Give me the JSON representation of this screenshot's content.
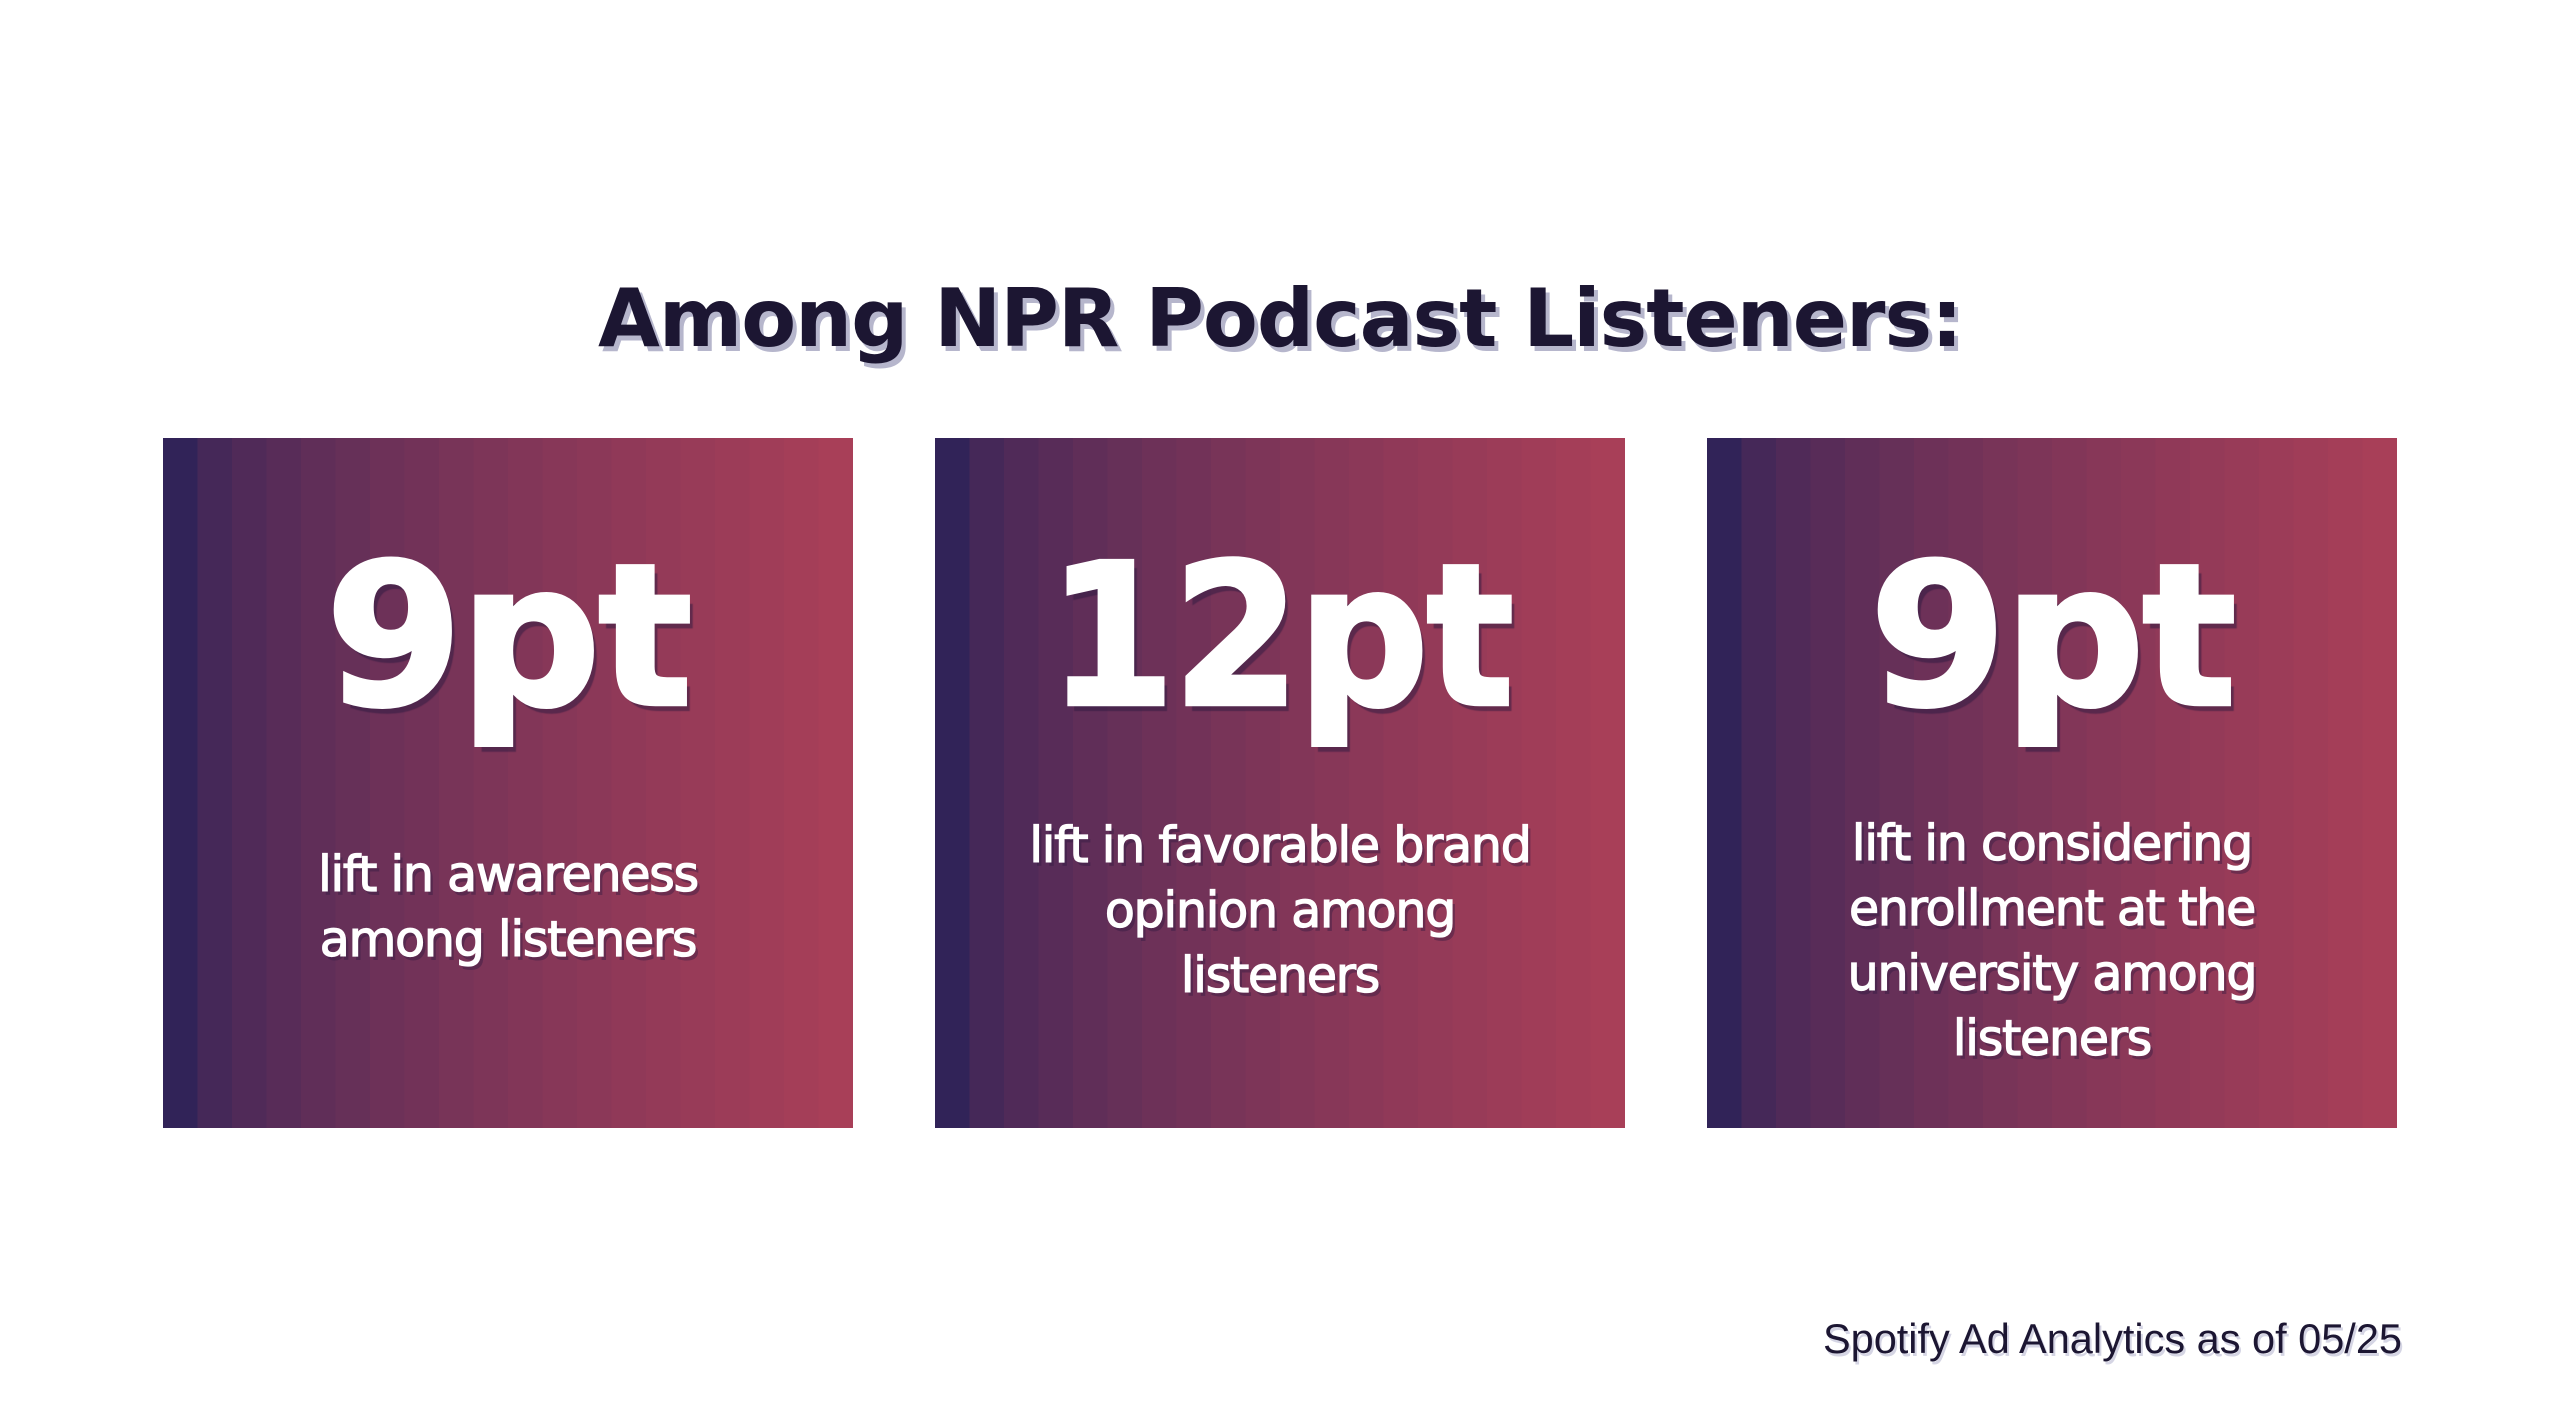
{
  "title": {
    "text": "Among NPR Podcast Listeners:"
  },
  "cards": [
    {
      "value": "9pt",
      "lines": [
        "lift in awareness",
        "among listeners"
      ]
    },
    {
      "value": "12pt",
      "lines": [
        "lift in favorable brand",
        "opinion among",
        "listeners"
      ]
    },
    {
      "value": "9pt",
      "lines": [
        "lift in considering",
        "enrollment at the",
        "university among",
        "listeners"
      ]
    }
  ],
  "footer": {
    "text": "Spotify Ad Analytics as of 05/25"
  },
  "colors": {
    "background": "#ffffff",
    "title_text": "#1c1632",
    "title_shadow": "#b6b6cc",
    "card_gradient_start": "#312358",
    "card_gradient_end": "#a83f58",
    "card_text": "#ffffff"
  }
}
